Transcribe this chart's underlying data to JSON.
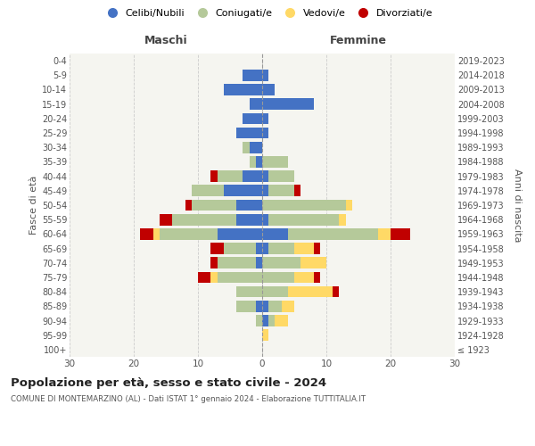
{
  "age_groups": [
    "100+",
    "95-99",
    "90-94",
    "85-89",
    "80-84",
    "75-79",
    "70-74",
    "65-69",
    "60-64",
    "55-59",
    "50-54",
    "45-49",
    "40-44",
    "35-39",
    "30-34",
    "25-29",
    "20-24",
    "15-19",
    "10-14",
    "5-9",
    "0-4"
  ],
  "birth_years": [
    "≤ 1923",
    "1924-1928",
    "1929-1933",
    "1934-1938",
    "1939-1943",
    "1944-1948",
    "1949-1953",
    "1954-1958",
    "1959-1963",
    "1964-1968",
    "1969-1973",
    "1974-1978",
    "1979-1983",
    "1984-1988",
    "1989-1993",
    "1994-1998",
    "1999-2003",
    "2004-2008",
    "2009-2013",
    "2014-2018",
    "2019-2023"
  ],
  "maschi": {
    "celibi": [
      0,
      0,
      0,
      1,
      0,
      0,
      1,
      1,
      7,
      4,
      4,
      6,
      3,
      1,
      2,
      4,
      3,
      2,
      6,
      3,
      0
    ],
    "coniugati": [
      0,
      0,
      1,
      3,
      4,
      7,
      6,
      5,
      9,
      10,
      7,
      5,
      4,
      1,
      1,
      0,
      0,
      0,
      0,
      0,
      0
    ],
    "vedovi": [
      0,
      0,
      0,
      0,
      0,
      1,
      0,
      0,
      1,
      0,
      0,
      0,
      0,
      0,
      0,
      0,
      0,
      0,
      0,
      0,
      0
    ],
    "divorziati": [
      0,
      0,
      0,
      0,
      0,
      2,
      1,
      2,
      2,
      2,
      1,
      0,
      1,
      0,
      0,
      0,
      0,
      0,
      0,
      0,
      0
    ]
  },
  "femmine": {
    "nubili": [
      0,
      0,
      1,
      1,
      0,
      0,
      0,
      1,
      4,
      1,
      0,
      1,
      1,
      0,
      0,
      1,
      1,
      8,
      2,
      1,
      0
    ],
    "coniugate": [
      0,
      0,
      1,
      2,
      4,
      5,
      6,
      4,
      14,
      11,
      13,
      4,
      4,
      4,
      0,
      0,
      0,
      0,
      0,
      0,
      0
    ],
    "vedove": [
      0,
      1,
      2,
      2,
      7,
      3,
      4,
      3,
      2,
      1,
      1,
      0,
      0,
      0,
      0,
      0,
      0,
      0,
      0,
      0,
      0
    ],
    "divorziate": [
      0,
      0,
      0,
      0,
      1,
      1,
      0,
      1,
      3,
      0,
      0,
      1,
      0,
      0,
      0,
      0,
      0,
      0,
      0,
      0,
      0
    ]
  },
  "colors": {
    "celibi_nubili": "#4472c4",
    "coniugati": "#b5c99a",
    "vedovi": "#ffd966",
    "divorziati": "#c00000"
  },
  "xlim": 30,
  "title": "Popolazione per età, sesso e stato civile - 2024",
  "subtitle": "COMUNE DI MONTEMARZINO (AL) - Dati ISTAT 1° gennaio 2024 - Elaborazione TUTTITALIA.IT",
  "ylabel": "Fasce di età",
  "ylabel_right": "Anni di nascita",
  "maschi_label": "Maschi",
  "femmine_label": "Femmine",
  "legend_labels": [
    "Celibi/Nubili",
    "Coniugati/e",
    "Vedovi/e",
    "Divorziati/e"
  ],
  "bg_color": "#ffffff",
  "grid_color": "#cccccc",
  "ax_bg_color": "#f5f5f0"
}
